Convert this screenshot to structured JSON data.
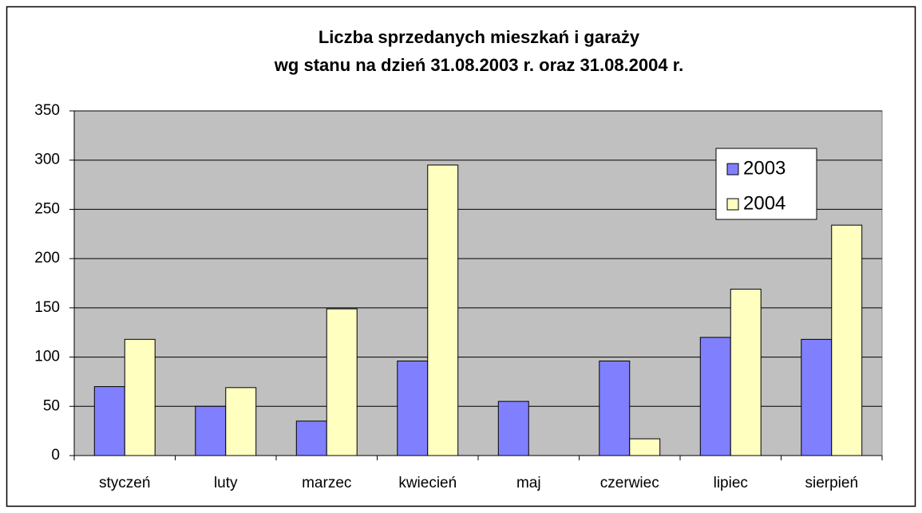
{
  "chart_data": {
    "type": "bar",
    "title": [
      "Liczba sprzedanych mieszkań i garaży",
      "wg stanu na dzień 31.08.2003 r. oraz 31.08.2004 r."
    ],
    "categories": [
      "styczeń",
      "luty",
      "marzec",
      "kwiecień",
      "maj",
      "czerwiec",
      "lipiec",
      "sierpień"
    ],
    "series": [
      {
        "name": "2003",
        "color": "#8080ff",
        "values": [
          70,
          50,
          35,
          96,
          55,
          96,
          120,
          118
        ]
      },
      {
        "name": "2004",
        "color": "#ffffc0",
        "values": [
          118,
          69,
          149,
          295,
          0,
          17,
          169,
          234
        ]
      }
    ],
    "ylim": [
      0,
      350
    ],
    "yticks": [
      0,
      50,
      100,
      150,
      200,
      250,
      300,
      350
    ],
    "grid": true,
    "legend": "right"
  }
}
